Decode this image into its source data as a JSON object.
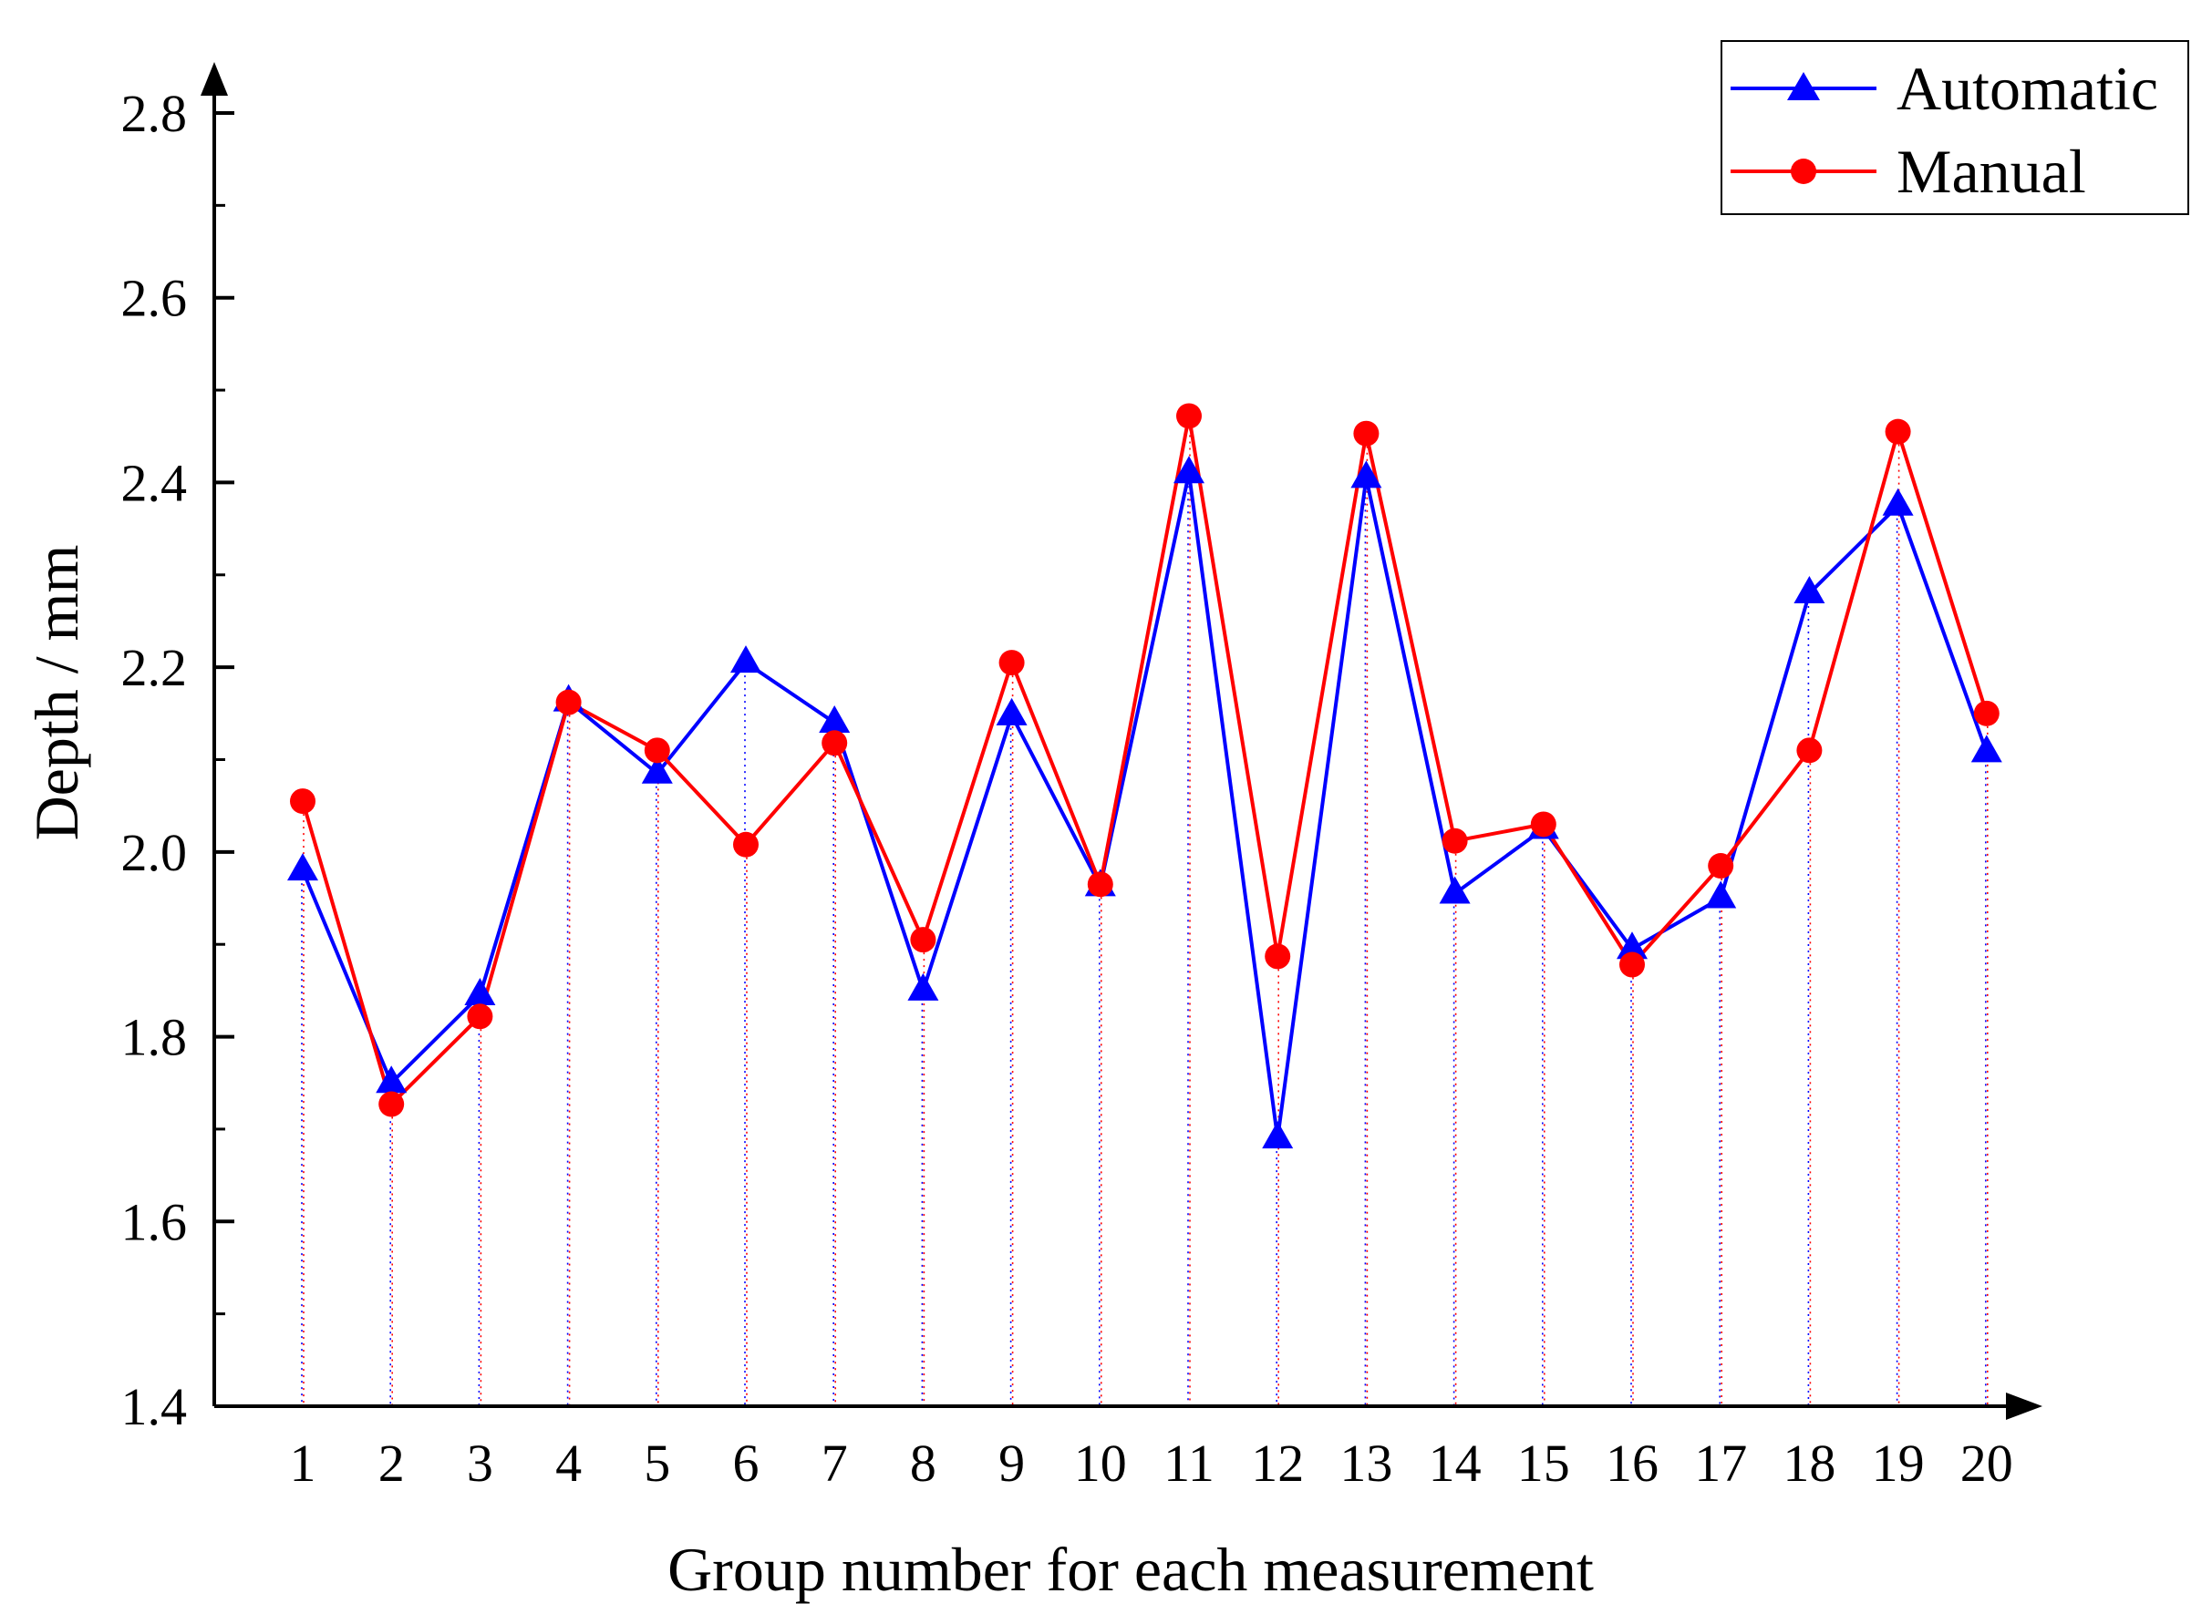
{
  "chart_data": {
    "type": "line",
    "title": "",
    "xlabel": "Group number for each measurement",
    "ylabel": "Depth / mm",
    "ylim": [
      1.4,
      2.8
    ],
    "yticks": [
      "1.4",
      "1.6",
      "1.8",
      "2.0",
      "2.2",
      "2.4",
      "2.6",
      "2.8"
    ],
    "categories": [
      "1",
      "2",
      "3",
      "4",
      "5",
      "6",
      "7",
      "8",
      "9",
      "10",
      "11",
      "12",
      "13",
      "14",
      "15",
      "16",
      "17",
      "18",
      "19",
      "20"
    ],
    "grid": false,
    "drop_lines": true,
    "legend_position": "top-right",
    "series": [
      {
        "name": "Automatic",
        "marker": "triangle",
        "color": "#0000ff",
        "values": [
          1.98,
          1.75,
          1.845,
          2.163,
          2.085,
          2.205,
          2.14,
          1.85,
          2.148,
          1.963,
          2.41,
          1.69,
          2.405,
          1.955,
          2.025,
          1.895,
          1.95,
          2.28,
          2.375,
          2.108
        ]
      },
      {
        "name": "Manual",
        "marker": "circle",
        "color": "#ff0000",
        "values": [
          2.055,
          1.727,
          1.822,
          2.162,
          2.11,
          2.008,
          2.118,
          1.905,
          2.205,
          1.965,
          2.472,
          1.887,
          2.453,
          2.012,
          2.03,
          1.878,
          1.985,
          2.11,
          2.455,
          2.15
        ]
      }
    ]
  }
}
